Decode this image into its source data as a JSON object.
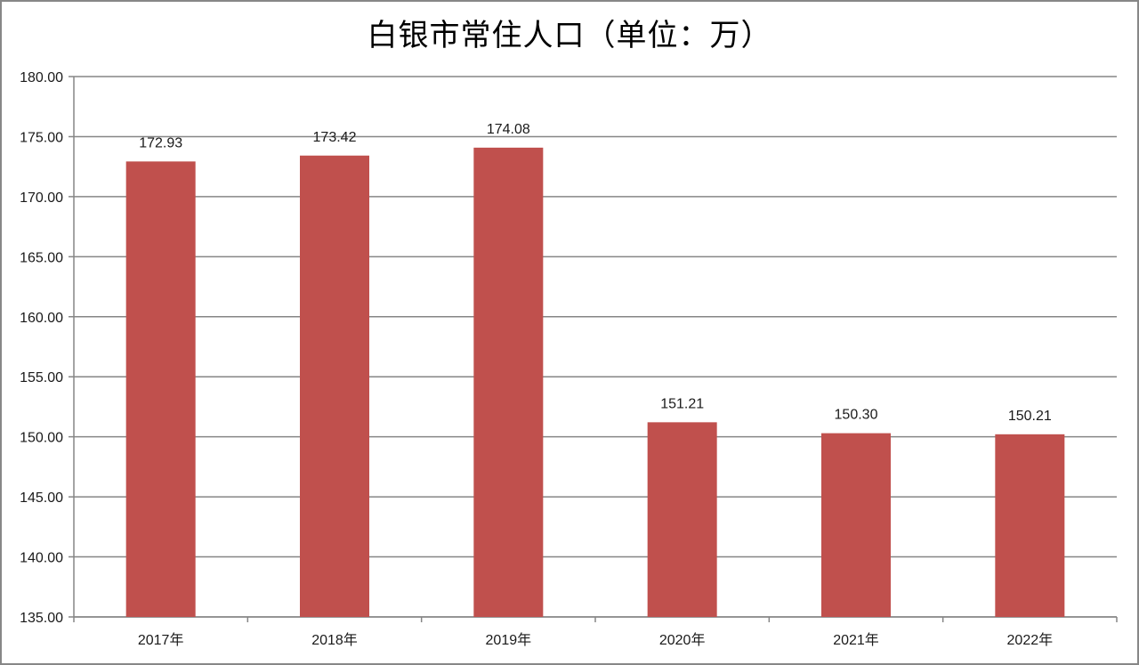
{
  "title": "白银市常住人口（单位：万）",
  "colors": {
    "bar": "#c0504d",
    "grid": "#868686",
    "border": "#878787"
  },
  "chart_data": {
    "type": "bar",
    "title": "白银市常住人口（单位：万）",
    "categories": [
      "2017年",
      "2018年",
      "2019年",
      "2020年",
      "2021年",
      "2022年"
    ],
    "values": [
      172.93,
      173.42,
      174.08,
      151.21,
      150.3,
      150.21
    ],
    "data_labels": [
      "172.93",
      "173.42",
      "174.08",
      "151.21",
      "150.30",
      "150.21"
    ],
    "xlabel": "",
    "ylabel": "",
    "ylim": [
      135,
      180
    ],
    "yticks": [
      "135.00",
      "140.00",
      "145.00",
      "150.00",
      "155.00",
      "160.00",
      "165.00",
      "170.00",
      "175.00",
      "180.00"
    ],
    "grid": true,
    "legend": "none"
  }
}
